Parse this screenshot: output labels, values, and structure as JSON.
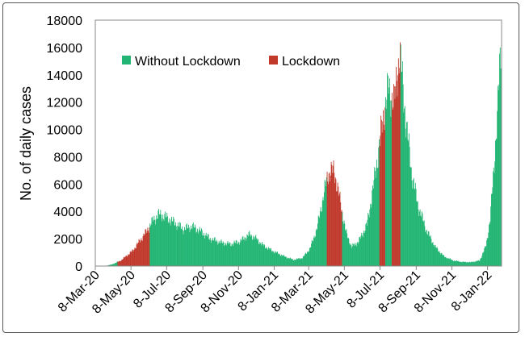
{
  "chart_data": {
    "type": "bar",
    "title": "",
    "xlabel": "",
    "ylabel": "No. of daily cases",
    "ylim": [
      0,
      18000
    ],
    "yticks": [
      "0",
      "2000",
      "4000",
      "6000",
      "8000",
      "10000",
      "12000",
      "14000",
      "16000",
      "18000"
    ],
    "xlim": [
      "2020-03-08",
      "2022-02-01"
    ],
    "xticks": [
      {
        "date": "2020-03-08",
        "label": "8-Mar-20"
      },
      {
        "date": "2020-05-08",
        "label": "8-May-20"
      },
      {
        "date": "2020-07-08",
        "label": "8-Jul-20"
      },
      {
        "date": "2020-09-08",
        "label": "8-Sep-20"
      },
      {
        "date": "2020-11-08",
        "label": "8-Nov-20"
      },
      {
        "date": "2021-01-08",
        "label": "8-Jan-21"
      },
      {
        "date": "2021-03-08",
        "label": "8-Mar-21"
      },
      {
        "date": "2021-05-08",
        "label": "8-May-21"
      },
      {
        "date": "2021-07-08",
        "label": "8-Jul-21"
      },
      {
        "date": "2021-09-08",
        "label": "8-Sep-21"
      },
      {
        "date": "2021-11-08",
        "label": "8-Nov-21"
      },
      {
        "date": "2022-01-08",
        "label": "8-Jan-22"
      }
    ],
    "legend_position": "top-left",
    "colors": {
      "without": "#22b573",
      "lockdown": "#c0392b"
    },
    "series": [
      {
        "name": "Without Lockdown",
        "color": "#22b573",
        "points": [
          [
            "2020-03-08",
            0
          ],
          [
            "2020-03-25",
            10
          ],
          [
            "2020-04-05",
            120
          ],
          [
            "2020-04-20",
            400
          ],
          [
            "2020-05-10",
            1100
          ],
          [
            "2020-06-01",
            2400
          ],
          [
            "2020-06-15",
            3400
          ],
          [
            "2020-06-25",
            3800
          ],
          [
            "2020-07-05",
            3600
          ],
          [
            "2020-07-20",
            3200
          ],
          [
            "2020-08-05",
            2700
          ],
          [
            "2020-08-20",
            2900
          ],
          [
            "2020-09-05",
            2500
          ],
          [
            "2020-09-20",
            2000
          ],
          [
            "2020-10-10",
            1700
          ],
          [
            "2020-10-25",
            1600
          ],
          [
            "2020-11-10",
            1800
          ],
          [
            "2020-11-25",
            2300
          ],
          [
            "2020-12-05",
            2100
          ],
          [
            "2020-12-20",
            1500
          ],
          [
            "2021-01-05",
            1100
          ],
          [
            "2021-01-25",
            700
          ],
          [
            "2021-02-10",
            450
          ],
          [
            "2021-02-25",
            600
          ],
          [
            "2021-03-10",
            1300
          ],
          [
            "2021-03-22",
            2800
          ],
          [
            "2021-04-01",
            5000
          ],
          [
            "2021-04-10",
            6800
          ],
          [
            "2021-04-20",
            7000
          ],
          [
            "2021-05-01",
            4600
          ],
          [
            "2021-05-10",
            2500
          ],
          [
            "2021-05-20",
            1400
          ],
          [
            "2021-06-01",
            1800
          ],
          [
            "2021-06-15",
            3000
          ],
          [
            "2021-06-25",
            5500
          ],
          [
            "2021-07-05",
            8500
          ],
          [
            "2021-07-15",
            11500
          ],
          [
            "2021-07-22",
            13000
          ],
          [
            "2021-08-01",
            12000
          ],
          [
            "2021-08-10",
            15800
          ],
          [
            "2021-08-20",
            11000
          ],
          [
            "2021-08-30",
            7000
          ],
          [
            "2021-09-10",
            4500
          ],
          [
            "2021-09-25",
            2600
          ],
          [
            "2021-10-10",
            1400
          ],
          [
            "2021-10-25",
            700
          ],
          [
            "2021-11-10",
            400
          ],
          [
            "2021-11-25",
            300
          ],
          [
            "2021-12-10",
            280
          ],
          [
            "2021-12-25",
            400
          ],
          [
            "2022-01-05",
            1500
          ],
          [
            "2022-01-12",
            3500
          ],
          [
            "2022-01-18",
            7000
          ],
          [
            "2022-01-24",
            11000
          ],
          [
            "2022-01-30",
            15800
          ]
        ]
      },
      {
        "name": "Lockdown",
        "color": "#c0392b",
        "periods": [
          {
            "start": "2020-04-15",
            "end": "2020-06-08"
          },
          {
            "start": "2021-04-08",
            "end": "2021-05-03"
          },
          {
            "start": "2021-07-07",
            "end": "2021-07-16"
          },
          {
            "start": "2021-07-28",
            "end": "2021-08-11"
          }
        ]
      }
    ]
  }
}
